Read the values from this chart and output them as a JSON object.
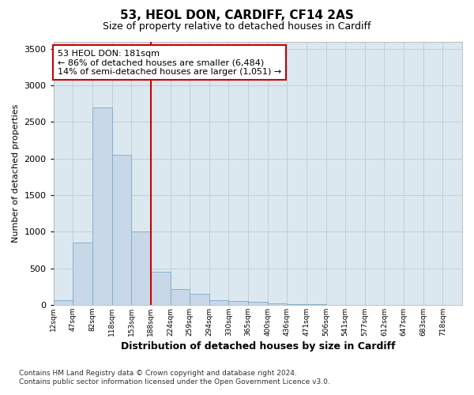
{
  "title1": "53, HEOL DON, CARDIFF, CF14 2AS",
  "title2": "Size of property relative to detached houses in Cardiff",
  "xlabel": "Distribution of detached houses by size in Cardiff",
  "ylabel": "Number of detached properties",
  "footnote1": "Contains HM Land Registry data © Crown copyright and database right 2024.",
  "footnote2": "Contains public sector information licensed under the Open Government Licence v3.0.",
  "annotation_line1": "53 HEOL DON: 181sqm",
  "annotation_line2": "← 86% of detached houses are smaller (6,484)",
  "annotation_line3": "14% of semi-detached houses are larger (1,051) →",
  "marker_color": "#cc0000",
  "annotation_box_color": "#cc0000",
  "bar_color": "#c8d8e8",
  "bar_edge_color": "#7aaac8",
  "plot_bg_color": "#dce8f0",
  "background_color": "#ffffff",
  "grid_color": "#b8ccd8",
  "categories": [
    "12sqm",
    "47sqm",
    "82sqm",
    "118sqm",
    "153sqm",
    "188sqm",
    "224sqm",
    "259sqm",
    "294sqm",
    "330sqm",
    "365sqm",
    "400sqm",
    "436sqm",
    "471sqm",
    "506sqm",
    "541sqm",
    "577sqm",
    "612sqm",
    "647sqm",
    "683sqm",
    "718sqm"
  ],
  "values": [
    60,
    850,
    2700,
    2050,
    1000,
    450,
    215,
    145,
    65,
    55,
    40,
    25,
    10,
    6,
    4,
    3,
    2,
    2,
    1,
    1,
    1
  ],
  "marker_bin": 5,
  "ylim": [
    0,
    3600
  ],
  "yticks": [
    0,
    500,
    1000,
    1500,
    2000,
    2500,
    3000,
    3500
  ]
}
